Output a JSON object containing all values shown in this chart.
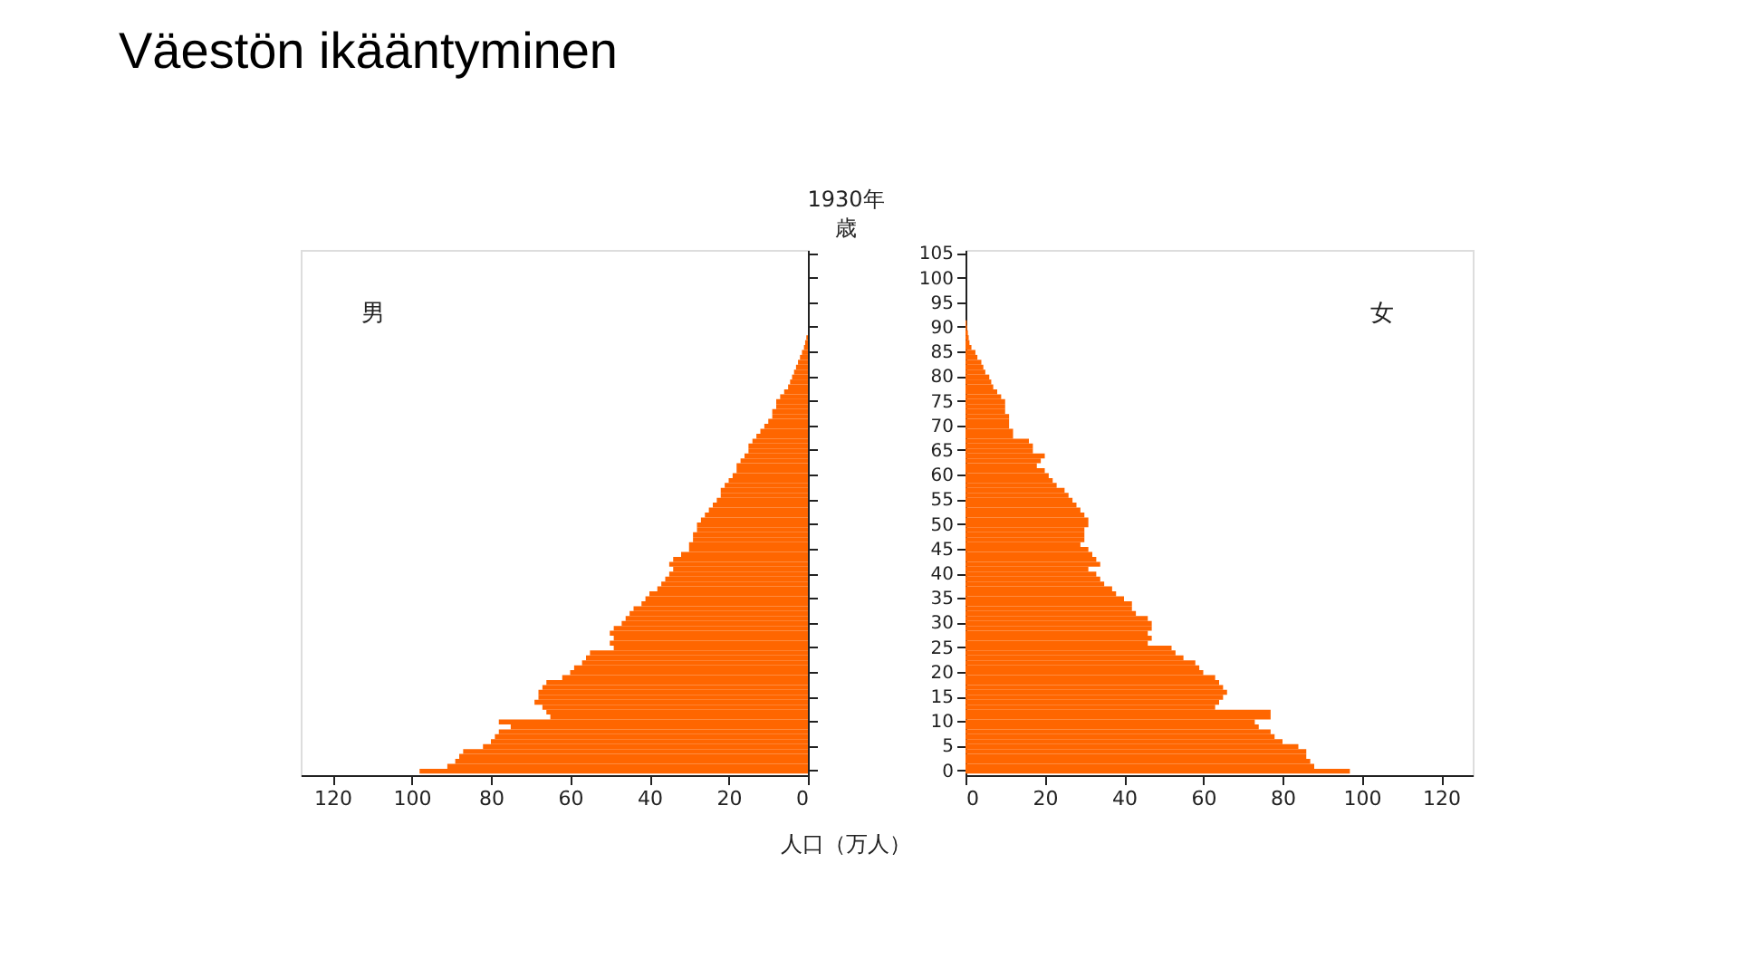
{
  "chart_data": [
    {
      "type": "bar",
      "orientation": "horizontal",
      "title": "Väestön ikääntyminen",
      "subtitle": "1930年",
      "ylabel": "歳",
      "xlabel": "人口（万人）",
      "xlim": [
        128,
        0
      ],
      "xticks": [
        0,
        20,
        40,
        60,
        80,
        100,
        120
      ],
      "grid": false,
      "tick_labels": "x",
      "legend": false,
      "categories": [
        "105",
        null,
        null,
        null,
        null,
        "100",
        null,
        null,
        null,
        null,
        "95",
        null,
        null,
        null,
        null,
        "90",
        null,
        null,
        null,
        null,
        "85",
        null,
        null,
        null,
        null,
        "80",
        null,
        null,
        null,
        null,
        "75",
        null,
        null,
        null,
        null,
        "70",
        null,
        null,
        null,
        null,
        "65",
        null,
        null,
        null,
        null,
        "60",
        null,
        null,
        null,
        null,
        "55",
        null,
        null,
        null,
        null,
        "50",
        null,
        null,
        null,
        null,
        "45",
        null,
        null,
        null,
        null,
        "40",
        null,
        null,
        null,
        null,
        "35",
        null,
        null,
        null,
        null,
        "30",
        null,
        null,
        null,
        null,
        "25",
        null,
        null,
        null,
        null,
        "20",
        null,
        null,
        null,
        null,
        "15",
        null,
        null,
        null,
        null,
        "10",
        null,
        null,
        null,
        null,
        "5",
        null,
        null,
        null,
        null,
        "0"
      ],
      "series": [
        {
          "name": "男",
          "color": "#ff6600",
          "values": [
            null,
            null,
            null,
            null,
            null,
            null,
            null,
            null,
            null,
            null,
            null,
            null,
            null,
            null,
            null,
            null,
            null,
            0.4,
            0.7,
            1,
            1.5,
            2,
            2.5,
            3,
            3.5,
            4,
            4.5,
            5,
            6,
            7,
            8,
            8,
            9,
            9,
            10,
            11,
            12,
            13,
            14,
            15,
            15,
            16,
            17,
            18,
            18,
            19,
            20,
            21,
            22,
            22,
            23,
            24,
            25,
            26,
            27,
            28,
            28,
            29,
            29,
            30,
            30,
            32,
            34,
            35,
            34,
            35,
            36,
            37,
            38,
            40,
            41,
            42,
            44,
            45,
            46,
            47,
            49,
            50,
            49,
            50,
            49,
            55,
            56,
            57,
            59,
            60,
            62,
            66,
            67,
            68,
            68,
            69,
            67,
            66,
            65,
            78,
            75,
            78,
            79,
            80,
            82,
            87,
            88,
            89,
            91,
            98
          ]
        }
      ]
    },
    {
      "type": "bar",
      "orientation": "horizontal",
      "xlim": [
        0,
        128
      ],
      "xticks": [
        0,
        20,
        40,
        60,
        80,
        100,
        120
      ],
      "grid": false,
      "legend": false,
      "categories": [
        "105",
        null,
        null,
        null,
        null,
        "100",
        null,
        null,
        null,
        null,
        "95",
        null,
        null,
        null,
        null,
        "90",
        null,
        null,
        null,
        null,
        "85",
        null,
        null,
        null,
        null,
        "80",
        null,
        null,
        null,
        null,
        "75",
        null,
        null,
        null,
        null,
        "70",
        null,
        null,
        null,
        null,
        "65",
        null,
        null,
        null,
        null,
        "60",
        null,
        null,
        null,
        null,
        "55",
        null,
        null,
        null,
        null,
        "50",
        null,
        null,
        null,
        null,
        "45",
        null,
        null,
        null,
        null,
        "40",
        null,
        null,
        null,
        null,
        "35",
        null,
        null,
        null,
        null,
        "30",
        null,
        null,
        null,
        null,
        "25",
        null,
        null,
        null,
        null,
        "20",
        null,
        null,
        null,
        null,
        "15",
        null,
        null,
        null,
        null,
        "10",
        null,
        null,
        null,
        null,
        "5",
        null,
        null,
        null,
        null,
        "0"
      ],
      "series": [
        {
          "name": "女",
          "color": "#ff6600",
          "values": [
            null,
            null,
            null,
            null,
            null,
            null,
            null,
            null,
            null,
            null,
            null,
            null,
            null,
            null,
            0.3,
            0.4,
            0.6,
            0.8,
            1,
            1.5,
            2.5,
            3,
            4,
            4.5,
            5,
            6,
            6.5,
            7,
            8,
            9,
            10,
            10,
            10,
            11,
            11,
            11,
            12,
            12,
            16,
            17,
            17,
            20,
            19,
            18,
            20,
            21,
            22,
            23,
            25,
            26,
            27,
            28,
            29,
            30,
            31,
            31,
            30,
            30,
            30,
            29,
            31,
            32,
            33,
            34,
            31,
            33,
            34,
            35,
            37,
            38,
            40,
            42,
            42,
            43,
            46,
            47,
            47,
            46,
            47,
            46,
            52,
            53,
            55,
            58,
            59,
            60,
            63,
            64,
            65,
            66,
            65,
            64,
            63,
            77,
            77,
            73,
            74,
            77,
            78,
            80,
            84,
            86,
            86,
            87,
            88,
            97
          ]
        }
      ]
    }
  ]
}
